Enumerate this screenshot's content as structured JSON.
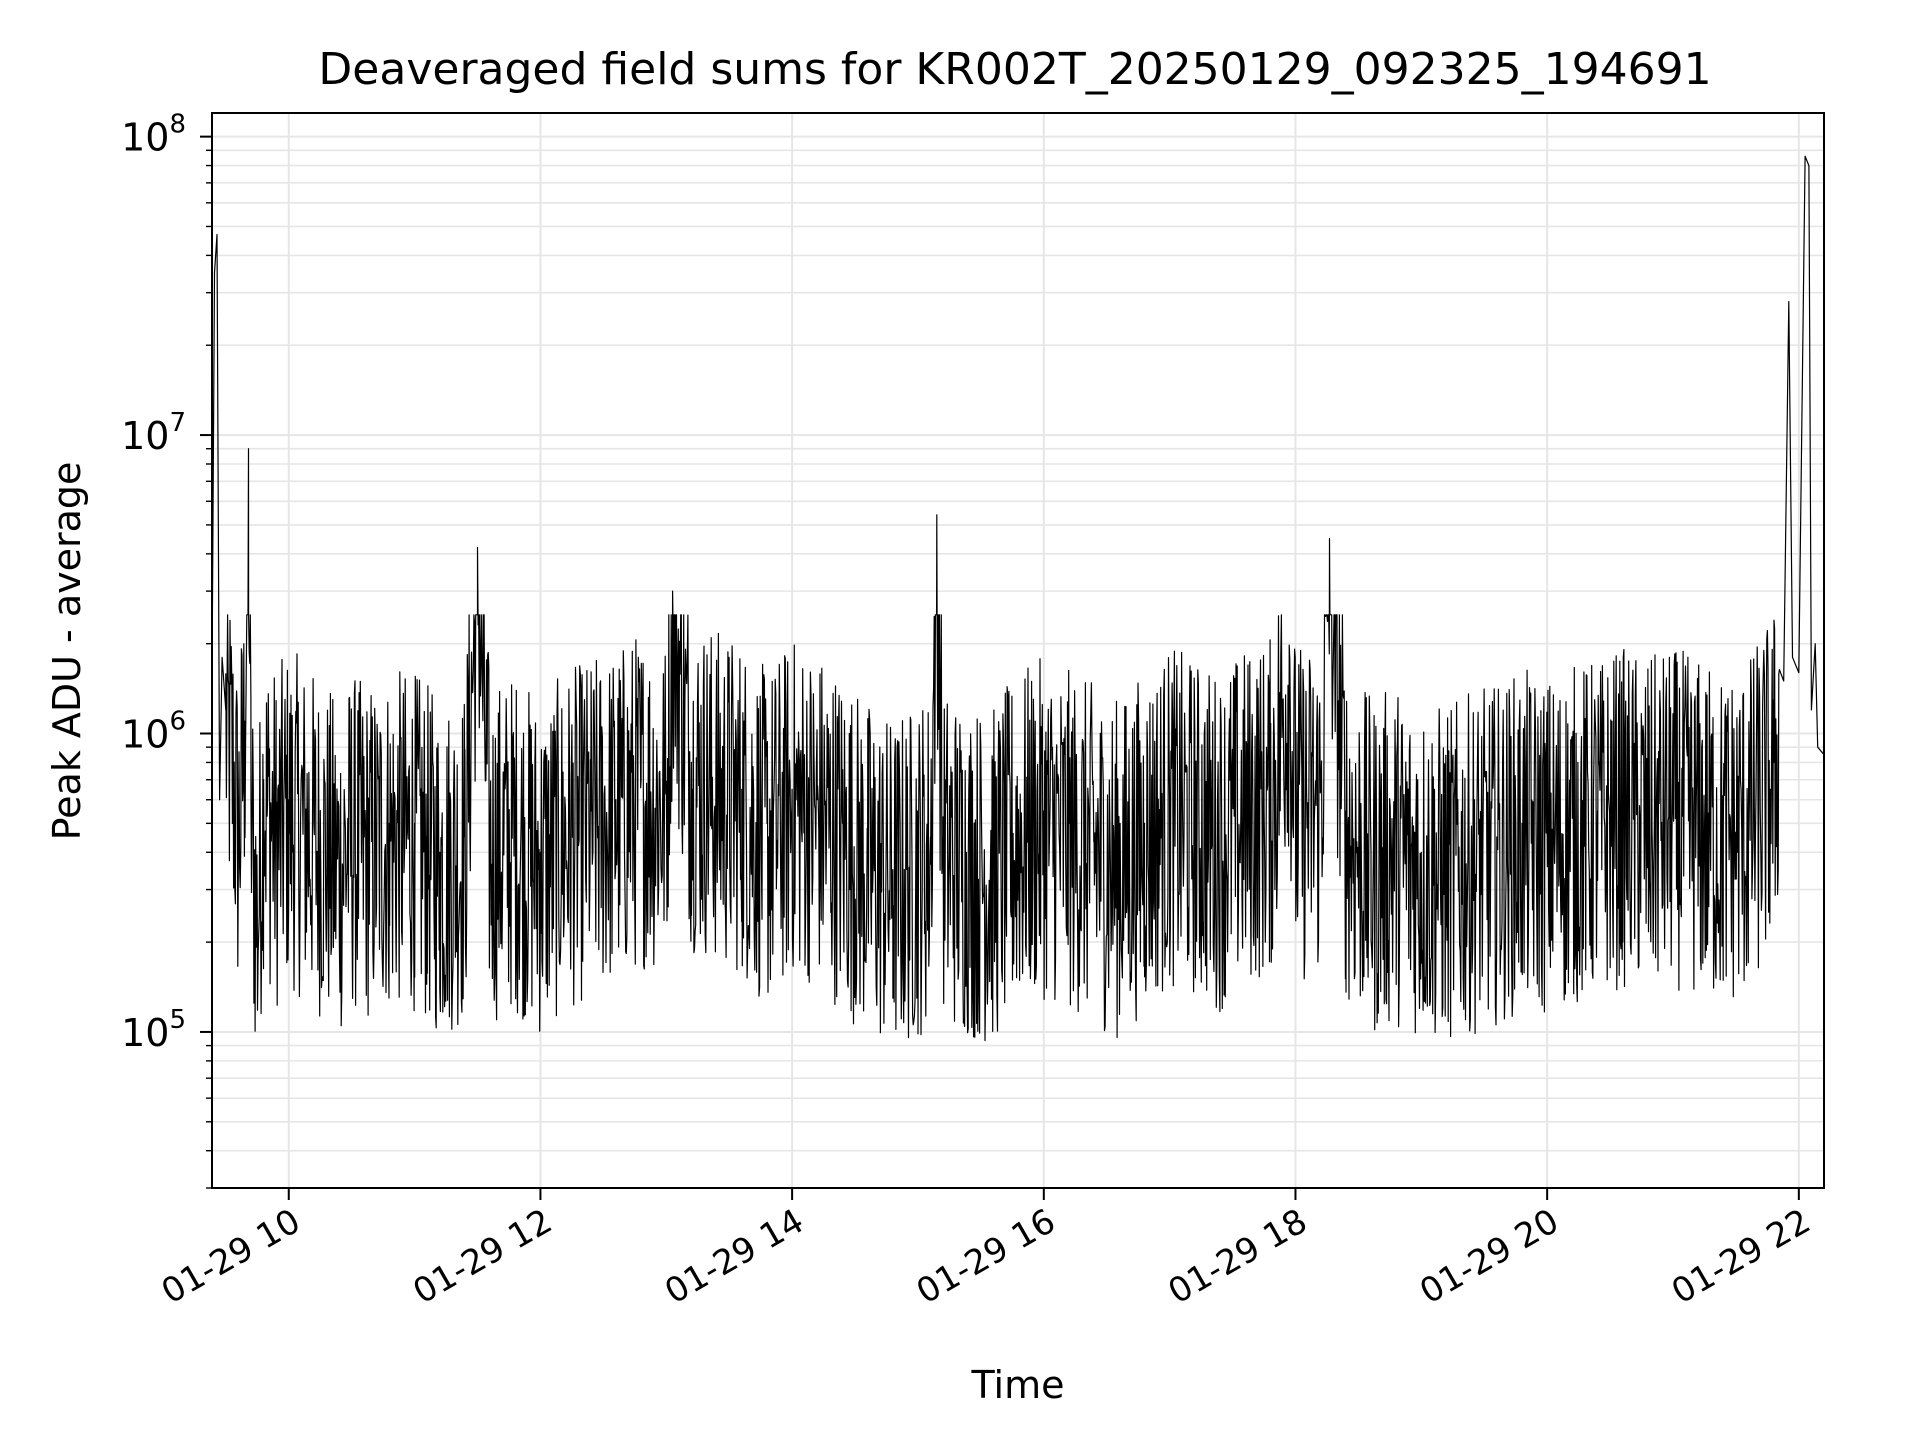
{
  "chart_data": {
    "type": "line",
    "title": "Deaveraged field sums for KR002T_20250129_092325_194691",
    "xlabel": "Time",
    "ylabel": "Peak ADU - average",
    "x_tick_labels": [
      "01-29 10",
      "01-29 12",
      "01-29 14",
      "01-29 16",
      "01-29 18",
      "01-29 20",
      "01-29 22"
    ],
    "x_ticks_hours": [
      10,
      12,
      14,
      16,
      18,
      20,
      22
    ],
    "xlim_hours": [
      9.39,
      22.2
    ],
    "y_scale": "log",
    "ylim": [
      30000,
      120000000
    ],
    "y_ticks": [
      {
        "value": 100000,
        "base": "10",
        "exp": "5"
      },
      {
        "value": 1000000,
        "base": "10",
        "exp": "6"
      },
      {
        "value": 10000000,
        "base": "10",
        "exp": "7"
      },
      {
        "value": 100000000,
        "base": "10",
        "exp": "8"
      }
    ],
    "grid": true,
    "line_color": "#000000",
    "grid_color": "#e6e6e6",
    "series": [
      {
        "name": "",
        "x_hours": [
          9.39,
          9.41,
          9.43,
          9.45,
          9.47,
          9.5,
          9.55,
          9.6,
          9.65,
          9.68,
          9.7,
          9.75,
          9.8,
          9.9,
          10.0,
          10.2,
          10.4,
          10.5,
          10.6,
          10.8,
          11.0,
          11.1,
          11.2,
          11.4,
          11.5,
          11.6,
          11.8,
          12.0,
          12.2,
          12.4,
          12.6,
          12.8,
          13.0,
          13.05,
          13.2,
          13.4,
          13.6,
          13.8,
          14.0,
          14.2,
          14.4,
          14.6,
          14.8,
          15.0,
          15.1,
          15.15,
          15.2,
          15.4,
          15.6,
          15.8,
          16.0,
          16.2,
          16.4,
          16.6,
          16.8,
          17.0,
          17.2,
          17.4,
          17.6,
          17.8,
          17.95,
          18.0,
          18.2,
          18.27,
          18.4,
          18.6,
          18.8,
          19.0,
          19.2,
          19.4,
          19.6,
          19.8,
          20.0,
          20.2,
          20.4,
          20.6,
          20.8,
          21.0,
          21.2,
          21.4,
          21.6,
          21.8,
          21.88,
          21.92,
          21.95,
          22.0,
          22.05,
          22.08,
          22.1,
          22.13,
          22.15,
          22.2
        ],
        "y": [
          1500000,
          35000000,
          47000000,
          600000,
          1800000,
          1200000,
          900000,
          500000,
          1100000,
          9000000,
          600000,
          250000,
          700000,
          500000,
          600000,
          500000,
          400000,
          500000,
          450000,
          500000,
          500000,
          450000,
          400000,
          450000,
          4200000,
          450000,
          500000,
          400000,
          500000,
          550000,
          600000,
          700000,
          650000,
          3000000,
          800000,
          700000,
          650000,
          500000,
          650000,
          600000,
          500000,
          400000,
          350000,
          400000,
          450000,
          5400000,
          450000,
          400000,
          380000,
          500000,
          550000,
          500000,
          450000,
          400000,
          500000,
          600000,
          550000,
          500000,
          600000,
          650000,
          1800000,
          600000,
          650000,
          4500000,
          550000,
          400000,
          450000,
          400000,
          380000,
          420000,
          450000,
          500000,
          480000,
          520000,
          550000,
          600000,
          550000,
          600000,
          550000,
          500000,
          550000,
          800000,
          1500000,
          28000000,
          1800000,
          1600000,
          86000000,
          80000000,
          1200000,
          2000000,
          900000,
          850000
        ],
        "noise_band": {
          "x_start_hours": 9.5,
          "x_end_hours": 21.85,
          "low": 60000,
          "high": 2500000
        }
      }
    ]
  }
}
